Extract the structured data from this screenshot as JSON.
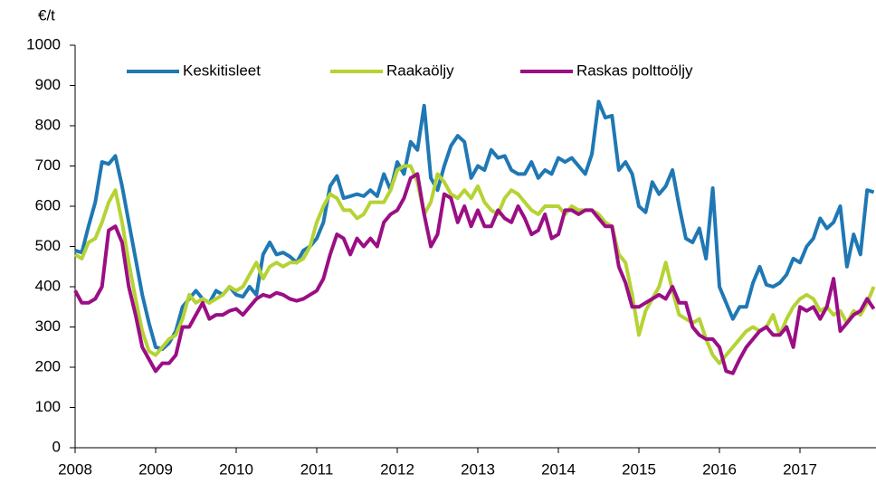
{
  "chart_data": {
    "type": "line",
    "ylabel": "€/t",
    "categories": [
      "2008",
      null,
      null,
      null,
      null,
      null,
      null,
      null,
      null,
      null,
      null,
      null,
      "2009",
      null,
      null,
      null,
      null,
      null,
      null,
      null,
      null,
      null,
      null,
      null,
      "2010",
      null,
      null,
      null,
      null,
      null,
      null,
      null,
      null,
      null,
      null,
      null,
      "2011",
      null,
      null,
      null,
      null,
      null,
      null,
      null,
      null,
      null,
      null,
      null,
      "2012",
      null,
      null,
      null,
      null,
      null,
      null,
      null,
      null,
      null,
      null,
      null,
      "2013",
      null,
      null,
      null,
      null,
      null,
      null,
      null,
      null,
      null,
      null,
      null,
      "2014",
      null,
      null,
      null,
      null,
      null,
      null,
      null,
      null,
      null,
      null,
      null,
      "2015",
      null,
      null,
      null,
      null,
      null,
      null,
      null,
      null,
      null,
      null,
      null,
      "2016",
      null,
      null,
      null,
      null,
      null,
      null,
      null,
      null,
      null,
      null,
      null,
      "2017",
      null,
      null,
      null,
      null,
      null,
      null,
      null,
      null,
      null,
      null,
      null
    ],
    "ylim": [
      0,
      1000
    ],
    "yticks": [
      0,
      100,
      200,
      300,
      400,
      500,
      600,
      700,
      800,
      900,
      1000
    ],
    "series": [
      {
        "name": "Keskitisleet",
        "color": "#1f78b4",
        "values": [
          490,
          485,
          550,
          610,
          710,
          705,
          725,
          650,
          560,
          470,
          380,
          310,
          250,
          245,
          260,
          290,
          350,
          370,
          390,
          370,
          360,
          390,
          380,
          400,
          380,
          375,
          400,
          380,
          480,
          510,
          480,
          485,
          475,
          460,
          490,
          500,
          520,
          560,
          650,
          675,
          620,
          625,
          630,
          625,
          640,
          625,
          680,
          640,
          710,
          680,
          760,
          740,
          850,
          670,
          640,
          700,
          750,
          775,
          760,
          670,
          700,
          690,
          740,
          720,
          725,
          690,
          680,
          680,
          710,
          670,
          690,
          680,
          720,
          710,
          720,
          700,
          680,
          730,
          860,
          820,
          825,
          690,
          710,
          680,
          600,
          585,
          660,
          630,
          650,
          690,
          600,
          520,
          510,
          545,
          470,
          645,
          400,
          360,
          320,
          350,
          350,
          410,
          450,
          405,
          400,
          410,
          430,
          470,
          460,
          500,
          520,
          570,
          545,
          560,
          600,
          450,
          530,
          480,
          640,
          635
        ]
      },
      {
        "name": "Raakaöljy",
        "color": "#b5d334",
        "values": [
          480,
          470,
          510,
          520,
          560,
          610,
          640,
          560,
          460,
          370,
          290,
          240,
          230,
          250,
          270,
          280,
          320,
          380,
          360,
          370,
          360,
          370,
          380,
          400,
          390,
          400,
          430,
          460,
          420,
          450,
          460,
          450,
          460,
          460,
          470,
          500,
          560,
          600,
          630,
          620,
          590,
          590,
          570,
          580,
          610,
          610,
          610,
          640,
          690,
          700,
          700,
          660,
          580,
          610,
          680,
          660,
          630,
          620,
          640,
          620,
          650,
          610,
          590,
          580,
          620,
          640,
          630,
          610,
          590,
          580,
          600,
          600,
          600,
          580,
          600,
          590,
          590,
          590,
          580,
          560,
          550,
          480,
          460,
          380,
          280,
          340,
          370,
          400,
          460,
          390,
          330,
          320,
          310,
          320,
          270,
          230,
          210,
          230,
          250,
          270,
          290,
          300,
          290,
          300,
          330,
          280,
          320,
          350,
          370,
          380,
          370,
          340,
          350,
          330,
          340,
          310,
          340,
          330,
          360,
          400
        ]
      },
      {
        "name": "Raskas polttoöljy",
        "color": "#9b0e84",
        "values": [
          390,
          360,
          360,
          370,
          400,
          540,
          550,
          510,
          400,
          330,
          250,
          220,
          190,
          210,
          210,
          230,
          300,
          300,
          330,
          360,
          320,
          330,
          330,
          340,
          345,
          330,
          350,
          370,
          380,
          375,
          385,
          380,
          370,
          365,
          370,
          380,
          390,
          420,
          480,
          530,
          520,
          480,
          520,
          500,
          520,
          500,
          560,
          580,
          590,
          620,
          670,
          680,
          580,
          500,
          530,
          630,
          620,
          560,
          600,
          550,
          590,
          550,
          550,
          590,
          570,
          560,
          600,
          570,
          530,
          540,
          580,
          520,
          530,
          590,
          590,
          580,
          590,
          590,
          570,
          550,
          550,
          450,
          410,
          350,
          350,
          360,
          370,
          380,
          370,
          400,
          360,
          360,
          300,
          280,
          270,
          270,
          250,
          190,
          185,
          220,
          250,
          270,
          290,
          300,
          280,
          280,
          300,
          250,
          350,
          340,
          350,
          320,
          350,
          420,
          290,
          310,
          330,
          340,
          370,
          345
        ]
      }
    ]
  }
}
